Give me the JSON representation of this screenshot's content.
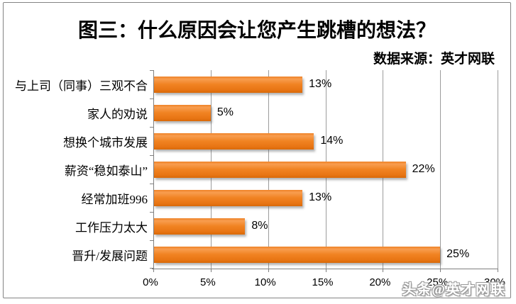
{
  "chart_data": {
    "type": "bar",
    "orientation": "horizontal",
    "title": "图三：什么原因会让您产生跳槽的想法？",
    "source_note": "数据来源：英才网联",
    "categories": [
      "与上司（同事）三观不合",
      "家人的劝说",
      "想换个城市发展",
      "薪资“稳如泰山”",
      "经常加班996",
      "工作压力太大",
      "晋升/发展问题"
    ],
    "values": [
      13,
      5,
      14,
      22,
      13,
      8,
      25
    ],
    "value_labels": [
      "13%",
      "5%",
      "14%",
      "22%",
      "13%",
      "8%",
      "25%"
    ],
    "x_ticks": [
      "0%",
      "5%",
      "10%",
      "15%",
      "20%",
      "25%",
      "30%"
    ],
    "xlim": [
      0,
      30
    ],
    "xlabel": "",
    "ylabel": "",
    "grid": true,
    "legend": "none",
    "colors": {
      "bar": "#EE7D1F",
      "gridline": "#9C9C9C",
      "axis": "#7F7F7F",
      "frame_border": "#848484",
      "text": "#000000",
      "background": "#FFFFFF",
      "watermark_text": "#FFFFFF"
    },
    "watermark": "头条@英才网联"
  }
}
